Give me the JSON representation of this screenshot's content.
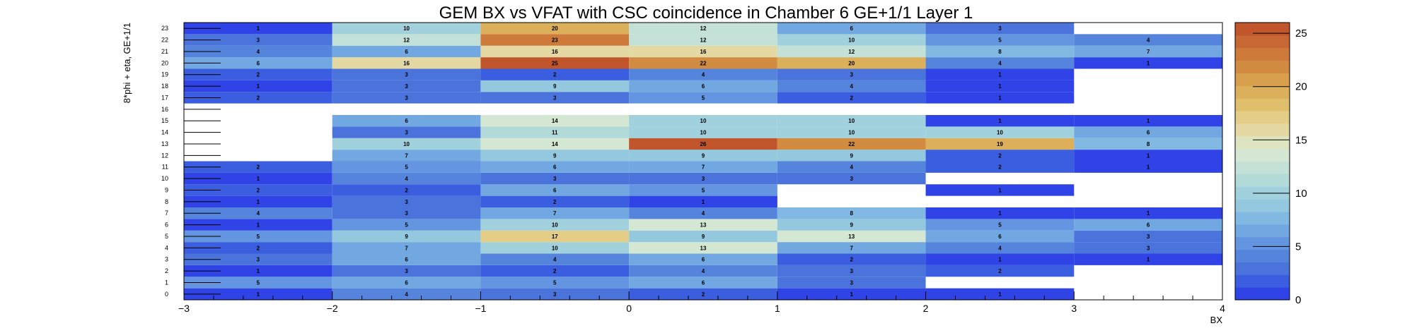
{
  "chart_data": {
    "type": "heatmap",
    "title": "GEM BX vs VFAT with CSC coincidence in Chamber 6 GE+1/1 Layer 1",
    "xlabel": "BX",
    "ylabel": "8*phi + eta, GE+1/1",
    "xlim": [
      -3,
      4
    ],
    "ylim": [
      0,
      24
    ],
    "x_tick_labels": [
      "−3",
      "−2",
      "−1",
      "0",
      "1",
      "2",
      "3",
      "4"
    ],
    "y_tick_labels": [
      "0",
      "1",
      "2",
      "3",
      "4",
      "5",
      "6",
      "7",
      "8",
      "9",
      "10",
      "11",
      "12",
      "13",
      "14",
      "15",
      "16",
      "17",
      "18",
      "19",
      "20",
      "21",
      "22",
      "23"
    ],
    "x_bins": [
      -2.5,
      -1.5,
      -0.5,
      0.5,
      1.5,
      2.5,
      3.5
    ],
    "zlim": [
      0,
      26
    ],
    "z_tick_labels": [
      "0",
      "5",
      "10",
      "15",
      "20",
      "25"
    ],
    "values": [
      [
        1,
        4,
        3,
        2,
        1,
        1,
        0
      ],
      [
        5,
        6,
        5,
        6,
        3,
        0,
        0
      ],
      [
        1,
        3,
        2,
        4,
        3,
        2,
        0
      ],
      [
        3,
        6,
        4,
        6,
        2,
        1,
        1
      ],
      [
        2,
        7,
        10,
        13,
        7,
        4,
        3
      ],
      [
        5,
        9,
        17,
        9,
        13,
        6,
        3
      ],
      [
        1,
        5,
        10,
        13,
        9,
        5,
        6
      ],
      [
        4,
        3,
        7,
        4,
        8,
        1,
        1
      ],
      [
        1,
        3,
        2,
        1,
        0,
        0,
        0
      ],
      [
        2,
        2,
        6,
        5,
        0,
        1,
        0
      ],
      [
        1,
        4,
        3,
        3,
        3,
        0,
        0
      ],
      [
        2,
        5,
        6,
        7,
        4,
        2,
        1
      ],
      [
        0,
        7,
        9,
        9,
        9,
        2,
        1
      ],
      [
        0,
        10,
        14,
        26,
        22,
        19,
        8
      ],
      [
        0,
        3,
        11,
        10,
        10,
        10,
        6
      ],
      [
        0,
        6,
        14,
        10,
        10,
        1,
        1
      ],
      [
        0,
        0,
        0,
        0,
        0,
        0,
        0
      ],
      [
        2,
        3,
        3,
        5,
        2,
        1,
        0
      ],
      [
        1,
        3,
        9,
        6,
        4,
        1,
        0
      ],
      [
        2,
        3,
        2,
        4,
        3,
        1,
        0
      ],
      [
        6,
        16,
        25,
        22,
        20,
        4,
        1
      ],
      [
        4,
        6,
        16,
        16,
        12,
        8,
        7
      ],
      [
        3,
        12,
        23,
        12,
        10,
        5,
        4
      ],
      [
        1,
        10,
        20,
        12,
        6,
        3,
        0
      ]
    ],
    "palette": [
      "#2f43e6",
      "#3b5ddf",
      "#4a73dc",
      "#5584dd",
      "#6395e0",
      "#72a8e2",
      "#82b9e3",
      "#93c8de",
      "#a1d1dd",
      "#b2dad8",
      "#c3e1d6",
      "#d4e7d2",
      "#dee4c0",
      "#e4d9a3",
      "#e4cd86",
      "#e0bf6c",
      "#dcaf5a",
      "#d79e4c",
      "#d28c42",
      "#cd7a3a",
      "#c76733",
      "#c1552b"
    ]
  }
}
